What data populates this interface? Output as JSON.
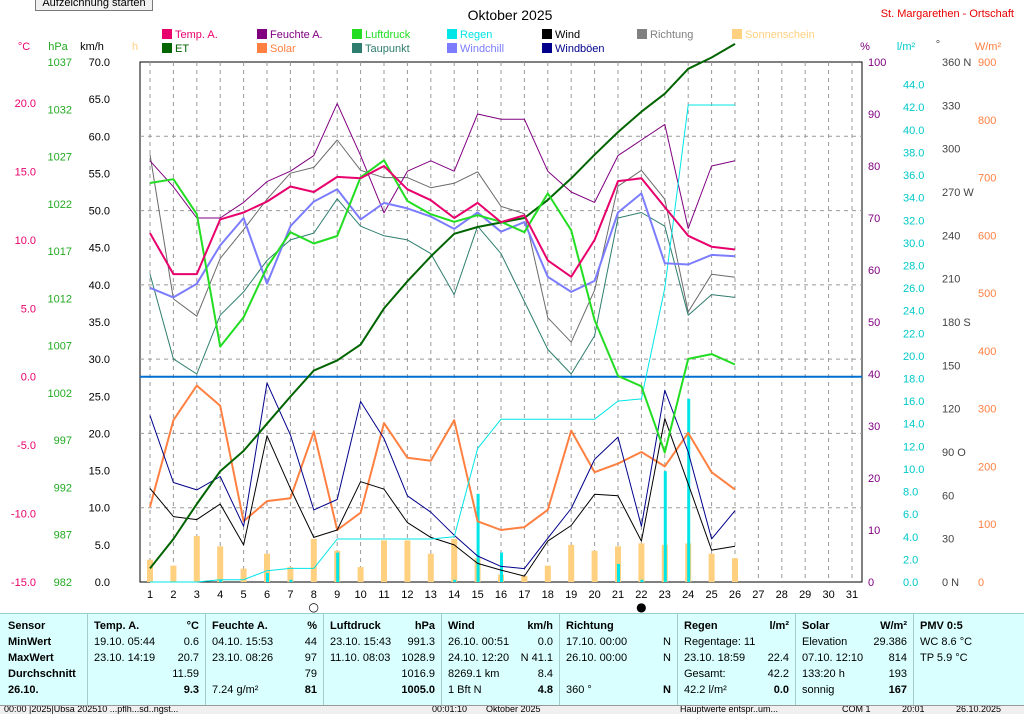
{
  "window": {
    "start_button": "Aufzeichnung starten",
    "title": "Oktober 2025",
    "station": "St. Margarethen - Ortschaft"
  },
  "colors": {
    "temp": "#e8006c",
    "humidity": "#800080",
    "pressure": "#22dd22",
    "rain": "#00e5e5",
    "wind": "#000000",
    "direction": "#808080",
    "sunshine": "#ffd080",
    "et": "#006400",
    "solar": "#ff8040",
    "dewpoint": "#2e7d6e",
    "windchill": "#7c7cff",
    "gust": "#00008b",
    "zero_line": "#0070d0"
  },
  "legend": [
    {
      "label": "Temp. A.",
      "color": "#e8006c"
    },
    {
      "label": "Feuchte A.",
      "color": "#800080"
    },
    {
      "label": "Luftdruck",
      "color": "#22dd22"
    },
    {
      "label": "Regen",
      "color": "#00e5e5"
    },
    {
      "label": "Wind",
      "color": "#000000"
    },
    {
      "label": "Richtung",
      "color": "#808080"
    },
    {
      "label": "Sonnenschein",
      "color": "#ffd080"
    },
    {
      "label": "ET",
      "color": "#006400"
    },
    {
      "label": "Solar",
      "color": "#ff8040"
    },
    {
      "label": "Taupunkt",
      "color": "#2e7d6e"
    },
    {
      "label": "Windchill",
      "color": "#7c7cff"
    },
    {
      "label": "Windböen",
      "color": "#00008b"
    }
  ],
  "chart_data": {
    "type": "line",
    "x": [
      1,
      2,
      3,
      4,
      5,
      6,
      7,
      8,
      9,
      10,
      11,
      12,
      13,
      14,
      15,
      16,
      17,
      18,
      19,
      20,
      21,
      22,
      23,
      24,
      25,
      26
    ],
    "x_ticks": [
      1,
      2,
      3,
      4,
      5,
      6,
      7,
      8,
      9,
      10,
      11,
      12,
      13,
      14,
      15,
      16,
      17,
      18,
      19,
      20,
      21,
      22,
      23,
      24,
      25,
      26,
      27,
      28,
      29,
      30,
      31
    ],
    "axes": {
      "temp_unit": "°C",
      "temp_ticks": [
        "20.0",
        "15.0",
        "10.0",
        "5.0",
        "0.0",
        "-5.0",
        "-10.0",
        "-15.0"
      ],
      "temp_range": [
        -15,
        23
      ],
      "hpa_unit": "hPa",
      "hpa_ticks": [
        "1037",
        "1032",
        "1027",
        "1022",
        "1017",
        "1012",
        "1007",
        "1002",
        "997",
        "992",
        "987",
        "982"
      ],
      "hpa_range": [
        982,
        1037
      ],
      "kmh_unit": "km/h",
      "kmh_ticks": [
        "70.0",
        "65.0",
        "60.0",
        "55.0",
        "50.0",
        "45.0",
        "40.0",
        "35.0",
        "30.0",
        "25.0",
        "20.0",
        "15.0",
        "10.0",
        "5.0",
        "0.0"
      ],
      "kmh_range": [
        0,
        70
      ],
      "h_unit": "h",
      "pct_unit": "%",
      "pct_ticks": [
        "100",
        "90",
        "80",
        "70",
        "60",
        "50",
        "40",
        "30",
        "20",
        "10",
        "0"
      ],
      "pct_range": [
        0,
        100
      ],
      "rain_unit": "l/m²",
      "rain_ticks": [
        "44.0",
        "42.0",
        "40.0",
        "38.0",
        "36.0",
        "34.0",
        "32.0",
        "30.0",
        "28.0",
        "26.0",
        "24.0",
        "22.0",
        "20.0",
        "18.0",
        "16.0",
        "14.0",
        "12.0",
        "10.0",
        "8.0",
        "6.0",
        "4.0",
        "2.0",
        "0.0"
      ],
      "rain_range": [
        0,
        46
      ],
      "dir_unit": "°",
      "dir_ticks": [
        "360 N",
        "330",
        "300",
        "270 W",
        "240",
        "210",
        "180 S",
        "150",
        "120",
        "90 O",
        "60",
        "30",
        "0 N"
      ],
      "dir_range": [
        0,
        360
      ],
      "solar_unit": "W/m²",
      "solar_ticks": [
        "900",
        "800",
        "700",
        "600",
        "500",
        "400",
        "300",
        "200",
        "100",
        "0"
      ],
      "solar_range": [
        0,
        900
      ]
    },
    "series": [
      {
        "name": "Temp. A.",
        "axis": "temp",
        "values": [
          10.5,
          7.5,
          7.5,
          11.5,
          12.0,
          12.8,
          13.9,
          13.5,
          14.6,
          14.5,
          15.4,
          13.7,
          12.9,
          11.6,
          12.7,
          11.3,
          11.8,
          8.5,
          7.3,
          10.0,
          14.3,
          14.5,
          12.4,
          10.3,
          9.5,
          9.3
        ]
      },
      {
        "name": "Feuchte A.",
        "axis": "pct",
        "values": [
          81,
          76,
          70,
          70,
          73,
          77,
          79,
          82,
          92,
          82,
          71,
          79,
          81,
          79,
          90,
          89,
          89,
          79,
          75,
          73,
          82,
          85,
          88,
          68,
          80,
          81
        ]
      },
      {
        "name": "Luftdruck",
        "axis": "hpa",
        "values": [
          1024.2,
          1024.6,
          1020.9,
          1006.9,
          1010.0,
          1015.3,
          1019.0,
          1017.8,
          1018.6,
          1024.8,
          1026.6,
          1022.3,
          1020.9,
          1020.1,
          1020.8,
          1020.1,
          1019.0,
          1023.1,
          1019.2,
          1009.7,
          1003.8,
          1002.7,
          995.7,
          1005.6,
          1006.1,
          1005.0
        ]
      },
      {
        "name": "Regen",
        "axis": "rain",
        "values": [
          0.0,
          0.0,
          0.0,
          0.2,
          0.2,
          1.0,
          1.2,
          1.2,
          3.8,
          3.8,
          3.8,
          3.8,
          3.8,
          4.0,
          11.8,
          14.4,
          14.4,
          14.4,
          14.4,
          14.4,
          16.0,
          16.2,
          26.0,
          42.2,
          42.2,
          42.2
        ]
      },
      {
        "name": "Wind",
        "axis": "kmh",
        "values": [
          12.6,
          8.8,
          8.4,
          10.5,
          5.0,
          19.7,
          12.6,
          6.0,
          7.0,
          13.5,
          12.5,
          8.0,
          6.0,
          5.0,
          2.5,
          1.6,
          0.8,
          5.5,
          7.6,
          11.8,
          11.6,
          5.5,
          22.0,
          13.2,
          4.3,
          4.8
        ]
      },
      {
        "name": "Richtung",
        "axis": "dir",
        "values": [
          296,
          196,
          184,
          224,
          244,
          265,
          283,
          287,
          306,
          285,
          280,
          280,
          273,
          276,
          284,
          260,
          255,
          183,
          166,
          202,
          274,
          285,
          265,
          187,
          213,
          211
        ]
      },
      {
        "name": "ET",
        "axis": "rain",
        "values": [
          1.2,
          3.8,
          6.9,
          9.8,
          11.6,
          14.0,
          16.4,
          18.7,
          19.6,
          21.0,
          24.2,
          26.6,
          28.8,
          30.8,
          31.4,
          31.8,
          32.2,
          33.8,
          35.7,
          37.8,
          39.8,
          41.6,
          43.2,
          45.4,
          46.4,
          47.6
        ]
      },
      {
        "name": "Solar",
        "axis": "solar",
        "values": [
          130,
          280,
          340,
          305,
          105,
          140,
          145,
          260,
          90,
          120,
          275,
          215,
          210,
          280,
          105,
          90,
          95,
          125,
          262,
          190,
          205,
          225,
          200,
          258,
          190,
          160
        ]
      },
      {
        "name": "Taupunkt",
        "axis": "temp",
        "values": [
          7.5,
          1.3,
          0.2,
          4.5,
          6.2,
          8.5,
          10.0,
          10.5,
          13.0,
          11.0,
          10.3,
          10.0,
          9.0,
          6.0,
          11.0,
          9.0,
          5.5,
          2.0,
          0.2,
          3.0,
          11.6,
          12.0,
          11.0,
          4.5,
          6.0,
          5.8
        ]
      },
      {
        "name": "Windchill",
        "axis": "temp",
        "values": [
          6.5,
          5.8,
          6.8,
          9.6,
          11.6,
          6.8,
          11.0,
          12.8,
          13.7,
          11.5,
          12.7,
          12.3,
          11.7,
          10.8,
          12.0,
          10.6,
          11.3,
          7.3,
          6.2,
          7.0,
          12.0,
          13.4,
          8.3,
          8.2,
          8.9,
          8.8
        ]
      },
      {
        "name": "Windböen",
        "axis": "kmh",
        "values": [
          22.4,
          13.4,
          12.4,
          14.2,
          7.5,
          26.8,
          19.8,
          9.7,
          11.1,
          24.3,
          19.3,
          11.6,
          9.4,
          6.3,
          3.5,
          2.1,
          1.8,
          5.9,
          9.9,
          16.5,
          19.5,
          7.5,
          25.8,
          17.5,
          5.8,
          9.6
        ]
      },
      {
        "name": "Sonnenschein",
        "axis": "kmh",
        "type": "bar",
        "values": [
          3,
          2.2,
          6.2,
          4.8,
          1.8,
          3.8,
          2.0,
          5.8,
          4.2,
          2.0,
          5.6,
          5.6,
          3.8,
          5.8,
          3.2,
          1.0,
          0.8,
          2.2,
          5.0,
          4.2,
          4.8,
          5.2,
          5.0,
          5.2,
          3.8,
          3.2
        ]
      },
      {
        "name": "Regen (Tag)",
        "axis": "rain",
        "type": "bar",
        "values": [
          0,
          0,
          0,
          0.2,
          0,
          0.8,
          0.2,
          0,
          2.6,
          0,
          0,
          0,
          0,
          0.2,
          7.8,
          2.6,
          0,
          0,
          0,
          0,
          1.6,
          0.2,
          9.8,
          16.2,
          0,
          0
        ]
      }
    ],
    "zero_line_temp": 0.0,
    "markers": [
      {
        "day": 8,
        "symbol": "○"
      },
      {
        "day": 22,
        "symbol": "●"
      }
    ]
  },
  "stats": {
    "labels": [
      "Sensor",
      "MinWert",
      "MaxWert",
      "Durchschnitt",
      "26.10."
    ],
    "temp": {
      "title": "Temp. A.",
      "unit": "°C",
      "rows": [
        [
          "19.10.  05:44",
          "0.6"
        ],
        [
          "23.10.  14:19",
          "20.7"
        ],
        [
          "",
          "11.59"
        ],
        [
          "",
          "9.3"
        ]
      ]
    },
    "humidity": {
      "title": "Feuchte A.",
      "unit": "%",
      "rows": [
        [
          "04.10.  15:53",
          "44"
        ],
        [
          "23.10.  08:26",
          "97"
        ],
        [
          "",
          "79"
        ],
        [
          "7.24 g/m²",
          "81"
        ]
      ]
    },
    "pressure": {
      "title": "Luftdruck",
      "unit": "hPa",
      "rows": [
        [
          "23.10.  15:43",
          "991.3"
        ],
        [
          "11.10.  08:03",
          "1028.9"
        ],
        [
          "",
          "1016.9"
        ],
        [
          "",
          "1005.0"
        ]
      ]
    },
    "wind": {
      "title": "Wind",
      "unit": "km/h",
      "rows": [
        [
          "26.10.  00:51",
          "0.0"
        ],
        [
          "24.10.  12:20",
          "N 41.1"
        ],
        [
          "8269.1 km",
          "8.4"
        ],
        [
          "1 Bft N",
          "4.8"
        ]
      ]
    },
    "direction": {
      "title": "Richtung",
      "rows": [
        [
          "17.10.  00:00",
          "N"
        ],
        [
          "26.10.  00:00",
          "N"
        ],
        [
          "",
          ""
        ],
        [
          "360 °",
          "N"
        ]
      ]
    },
    "rain": {
      "title": "Regen",
      "unit": "l/m²",
      "rows": [
        [
          "Regentage: 11",
          ""
        ],
        [
          "23.10.  18:59",
          "22.4"
        ],
        [
          "Gesamt:",
          "42.2"
        ],
        [
          "42.2 l/m²",
          "0.0"
        ]
      ]
    },
    "solar": {
      "title": "Solar",
      "unit": "W/m²",
      "rows": [
        [
          "Elevation",
          "29.386"
        ],
        [
          "07.10.  12:10",
          "814"
        ],
        [
          "133:20 h",
          "193"
        ],
        [
          "sonnig",
          "167"
        ]
      ]
    },
    "pmv": {
      "title": "PMV 0:5",
      "rows": [
        "WC 8.6 °C",
        "TP 5.9 °C"
      ]
    }
  },
  "statusbar": [
    "00:00  |2025|Ubsa 202510 ...pflh...sd..ngst...",
    "00:01:10",
    "Oktober 2025",
    "Hauptwerte entspr..um...",
    "COM 1",
    "20:01",
    "26.10.2025"
  ]
}
